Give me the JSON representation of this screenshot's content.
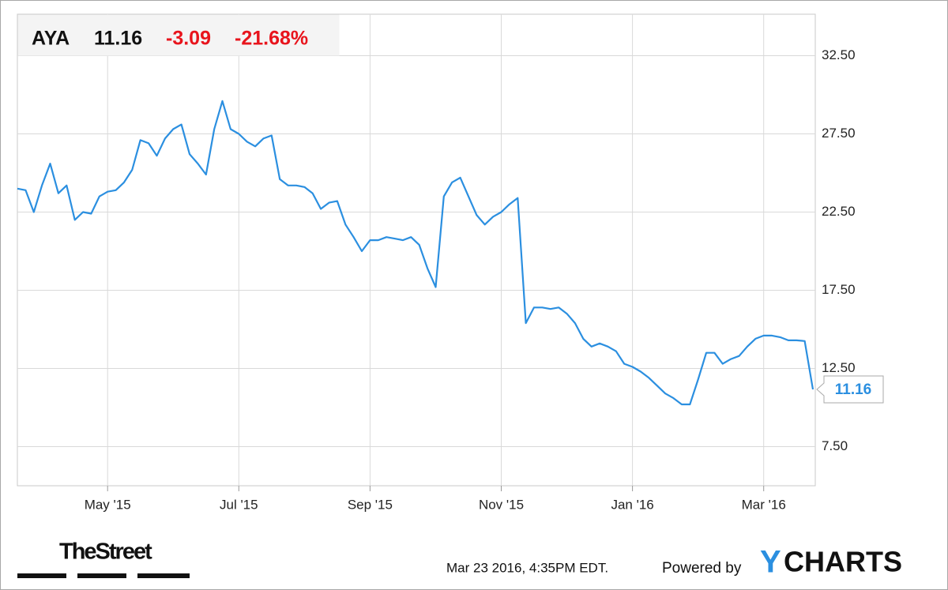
{
  "chart_data": {
    "type": "line",
    "ticker": "AYA",
    "change": "-3.09",
    "change_percent": "-21.68%",
    "timestamp": "Mar 23 2016, 4:35PM EDT.",
    "powered_by": "Powered by",
    "brand_initial": "Y",
    "brand_rest": "CHARTS",
    "source": "TheStreet",
    "categories": [
      null,
      null,
      null,
      null,
      null,
      null,
      null,
      null,
      null,
      null,
      null,
      "May '15",
      null,
      null,
      null,
      null,
      null,
      null,
      null,
      null,
      null,
      null,
      null,
      null,
      null,
      null,
      null,
      "Jul '15",
      null,
      null,
      null,
      null,
      null,
      null,
      null,
      null,
      null,
      null,
      null,
      null,
      null,
      null,
      null,
      "Sep '15",
      null,
      null,
      null,
      null,
      null,
      null,
      null,
      null,
      null,
      null,
      null,
      null,
      null,
      null,
      null,
      "Nov '15",
      null,
      null,
      null,
      null,
      null,
      null,
      null,
      null,
      null,
      null,
      null,
      null,
      null,
      null,
      null,
      "Jan '16",
      null,
      null,
      null,
      null,
      null,
      null,
      null,
      null,
      null,
      null,
      null,
      null,
      null,
      null,
      null,
      "Mar '16",
      null,
      null,
      null,
      null,
      null,
      null
    ],
    "series": [
      {
        "name": "AYA",
        "color": "#2b8fe0",
        "values": [
          24.0,
          23.9,
          22.5,
          24.2,
          25.6,
          23.7,
          24.2,
          22.0,
          22.5,
          22.4,
          23.5,
          23.8,
          23.9,
          24.4,
          25.2,
          27.1,
          26.9,
          26.1,
          27.2,
          27.8,
          28.1,
          26.2,
          25.6,
          24.9,
          27.8,
          29.6,
          27.8,
          27.5,
          27.0,
          26.7,
          27.2,
          27.4,
          24.6,
          24.2,
          24.2,
          24.1,
          23.7,
          22.7,
          23.1,
          23.2,
          21.7,
          20.9,
          20.0,
          20.7,
          20.7,
          20.9,
          20.8,
          20.7,
          20.9,
          20.4,
          18.9,
          17.7,
          23.5,
          24.4,
          24.7,
          23.5,
          22.3,
          21.7,
          22.2,
          22.5,
          23.0,
          23.4,
          15.4,
          16.4,
          16.4,
          16.3,
          16.4,
          16.0,
          15.4,
          14.4,
          13.9,
          14.1,
          13.9,
          13.6,
          12.8,
          12.6,
          12.3,
          11.9,
          11.4,
          10.9,
          10.6,
          10.2,
          10.2,
          11.8,
          13.5,
          13.5,
          12.8,
          13.1,
          13.3,
          13.9,
          14.4,
          14.6,
          14.6,
          14.5,
          14.3,
          14.3,
          14.25,
          11.16
        ]
      }
    ],
    "ylim": [
      5,
      35.15
    ],
    "yticks": [
      {
        "value": 7.5,
        "label": "7.50"
      },
      {
        "value": 12.5,
        "label": "12.50"
      },
      {
        "value": 17.5,
        "label": "17.50"
      },
      {
        "value": 22.5,
        "label": "22.50"
      },
      {
        "value": 27.5,
        "label": "27.50"
      },
      {
        "value": 32.5,
        "label": "32.50"
      }
    ],
    "grid": true,
    "change_color": "#e8141c",
    "grid_color": "#d9d9d9"
  }
}
